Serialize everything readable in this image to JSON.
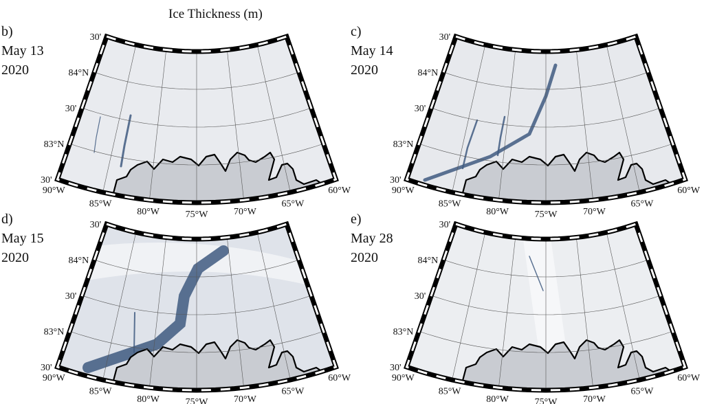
{
  "header": {
    "title": "Ice Thickness (m)"
  },
  "map": {
    "lat_labels": [
      "30'",
      "84°N",
      "30'",
      "83°N",
      "30'"
    ],
    "lon_labels": [
      "90°W",
      "85°W",
      "80°W",
      "75°W",
      "70°W",
      "65°W",
      "60°W"
    ]
  },
  "panels": [
    {
      "label": "b)",
      "date": "May 13",
      "year": "2020"
    },
    {
      "label": "c)",
      "date": "May 14",
      "year": "2020"
    },
    {
      "label": "d)",
      "date": "May 15",
      "year": "2020"
    },
    {
      "label": "e)",
      "date": "May 28",
      "year": "2020"
    }
  ]
}
